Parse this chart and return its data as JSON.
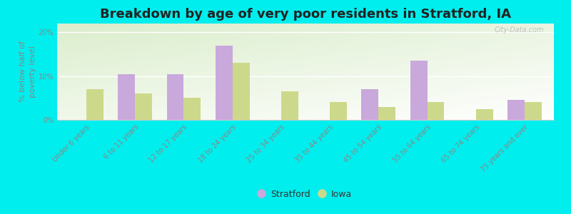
{
  "title": "Breakdown by age of very poor residents in Stratford, IA",
  "ylabel": "% below half of\npoverty level",
  "categories": [
    "Under 6 years",
    "6 to 11 years",
    "12 to 17 years",
    "18 to 24 years",
    "25 to 34 years",
    "35 to 44 years",
    "45 to 54 years",
    "55 to 64 years",
    "65 to 74 years",
    "75 years and over"
  ],
  "stratford_values": [
    0,
    10.5,
    10.5,
    17.0,
    0,
    0,
    7.0,
    13.5,
    0,
    4.5
  ],
  "iowa_values": [
    7.0,
    6.0,
    5.0,
    13.0,
    6.5,
    4.0,
    3.0,
    4.0,
    2.5,
    4.0
  ],
  "stratford_color": "#c9a8dc",
  "iowa_color": "#cdd98a",
  "background_outer": "#00eeee",
  "title_fontsize": 13,
  "ylabel_fontsize": 8,
  "tick_fontsize": 7,
  "legend_fontsize": 9,
  "ylim": [
    0,
    22
  ],
  "yticks": [
    0,
    10,
    20
  ],
  "ytick_labels": [
    "0%",
    "10%",
    "20%"
  ],
  "bar_width": 0.35,
  "watermark": "City-Data.com"
}
